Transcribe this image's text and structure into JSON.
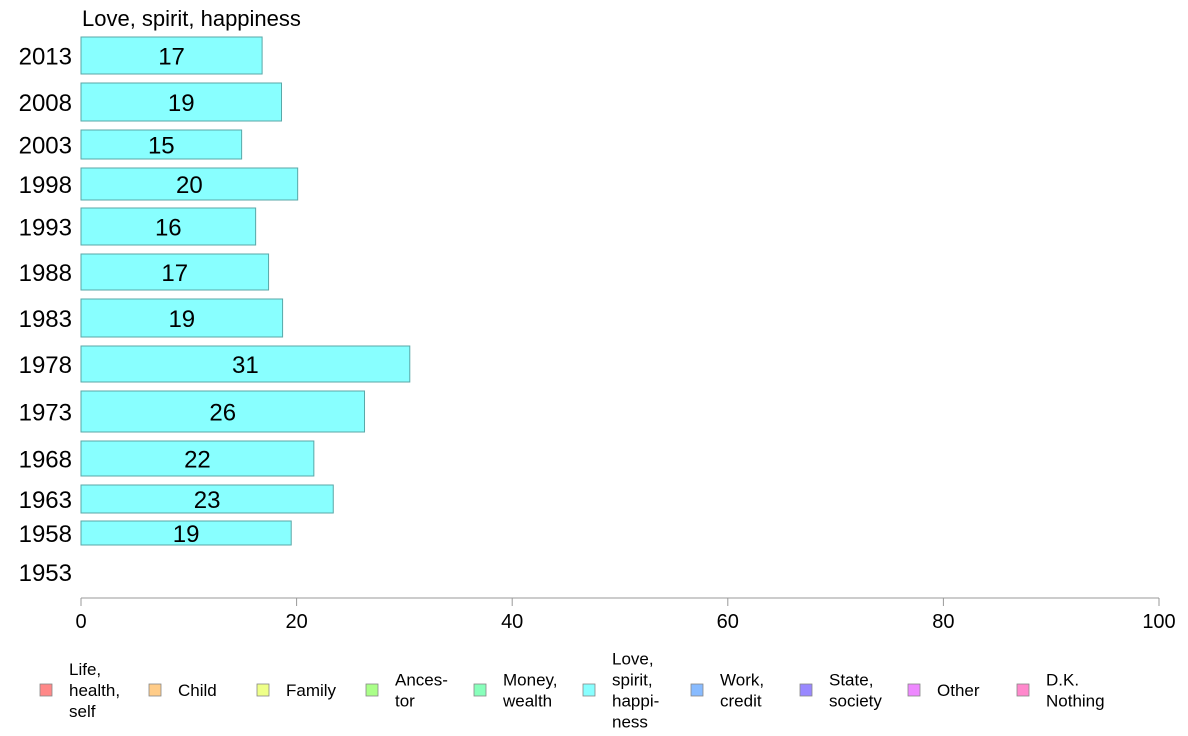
{
  "chart_data": {
    "type": "bar",
    "orientation": "horizontal",
    "title": "Love, spirit, happiness",
    "categories": [
      "2013",
      "2008",
      "2003",
      "1998",
      "1993",
      "1988",
      "1983",
      "1978",
      "1973",
      "1968",
      "1963",
      "1958",
      "1953"
    ],
    "values": [
      17,
      19,
      15,
      20,
      16,
      17,
      19,
      31,
      26,
      22,
      23,
      19,
      null
    ],
    "value_labels": [
      "17",
      "19",
      "15",
      "20",
      "16",
      "17",
      "19",
      "31",
      "26",
      "22",
      "23",
      "19",
      ""
    ],
    "bar_values": [
      16.8,
      18.6,
      14.9,
      20.1,
      16.2,
      17.4,
      18.7,
      30.5,
      26.3,
      21.6,
      23.4,
      19.5,
      null
    ],
    "xlim": [
      0,
      100
    ],
    "xticks": [
      "0",
      "20",
      "40",
      "60",
      "80",
      "100"
    ],
    "bar_color": "#88ffff",
    "bar_border": "#5aa7a7",
    "grid": false,
    "legend_position": "bottom",
    "legend": [
      {
        "lines": [
          "Life,",
          "health,",
          "self"
        ],
        "color": "#ff8888"
      },
      {
        "lines": [
          "Child"
        ],
        "color": "#ffcc88"
      },
      {
        "lines": [
          "Family"
        ],
        "color": "#eeff88"
      },
      {
        "lines": [
          "Ances-",
          "tor"
        ],
        "color": "#aaff88"
      },
      {
        "lines": [
          "Money,",
          "wealth"
        ],
        "color": "#88ffbb"
      },
      {
        "lines": [
          "Love,",
          "spirit,",
          "happi-",
          "ness"
        ],
        "color": "#88ffff"
      },
      {
        "lines": [
          "Work,",
          "credit"
        ],
        "color": "#88bbff"
      },
      {
        "lines": [
          "State,",
          "society"
        ],
        "color": "#9988ff"
      },
      {
        "lines": [
          "Other"
        ],
        "color": "#ee88ff"
      },
      {
        "lines": [
          "D.K.",
          "Nothing"
        ],
        "color": "#ff88cc"
      }
    ]
  }
}
